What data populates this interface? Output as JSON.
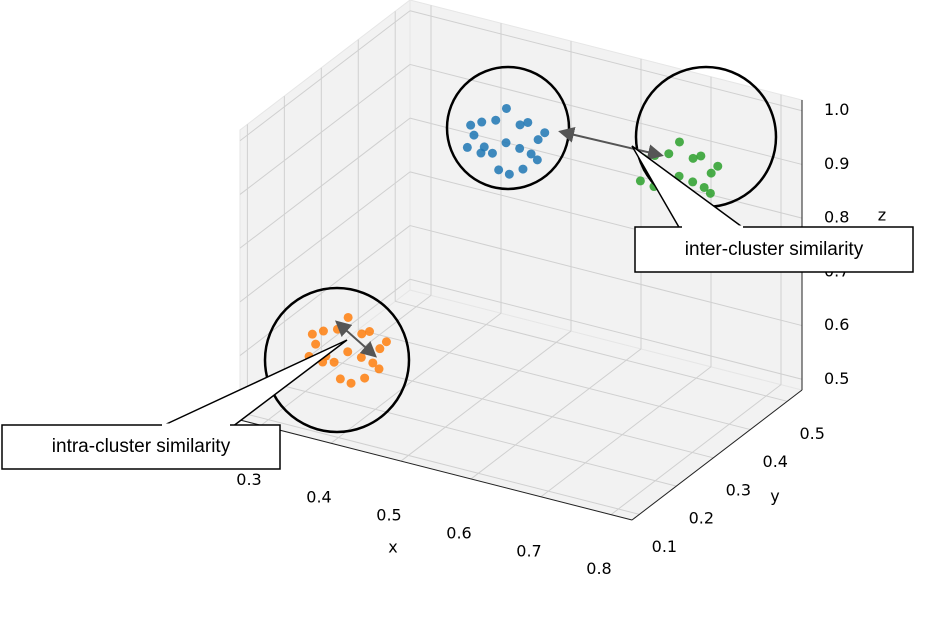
{
  "chart_data": {
    "type": "scatter3d",
    "xlabel": "x",
    "ylabel": "y",
    "zlabel": "z",
    "xlim": [
      0.27,
      0.83
    ],
    "ylim": [
      0.08,
      0.54
    ],
    "zlim": [
      0.48,
      1.02
    ],
    "xticks": [
      0.3,
      0.4,
      0.5,
      0.6,
      0.7,
      0.8
    ],
    "yticks": [
      0.1,
      0.2,
      0.3,
      0.4,
      0.5
    ],
    "zticks": [
      0.5,
      0.6,
      0.7,
      0.8,
      0.9,
      {
        "value": 1,
        "label": "1.0"
      }
    ],
    "grid": true,
    "annotations": [
      "inter-cluster similarity",
      "intra-cluster similarity"
    ],
    "series": [
      {
        "color": "#1f77b4",
        "x": [
          0.46,
          0.49,
          0.42,
          0.48,
          0.44,
          0.51,
          0.41,
          0.47,
          0.45,
          0.5,
          0.43,
          0.48,
          0.44,
          0.46,
          0.49,
          0.42,
          0.47,
          0.45,
          0.51,
          0.43
        ],
        "y": [
          0.44,
          0.42,
          0.45,
          0.47,
          0.41,
          0.45,
          0.43,
          0.48,
          0.4,
          0.41,
          0.46,
          0.44,
          0.45,
          0.42,
          0.47,
          0.42,
          0.43,
          0.46,
          0.43,
          0.41
        ],
        "z": [
          0.87,
          0.88,
          0.89,
          0.84,
          0.86,
          0.9,
          0.85,
          0.89,
          0.88,
          0.85,
          0.83,
          0.91,
          0.9,
          0.83,
          0.87,
          0.9,
          0.82,
          0.92,
          0.86,
          0.89
        ]
      },
      {
        "color": "#ff7f0e",
        "x": [
          0.35,
          0.38,
          0.31,
          0.37,
          0.33,
          0.4,
          0.3,
          0.36,
          0.34,
          0.39,
          0.32,
          0.37,
          0.33,
          0.35,
          0.38,
          0.31,
          0.36,
          0.34,
          0.4,
          0.32
        ],
        "y": [
          0.22,
          0.2,
          0.23,
          0.25,
          0.19,
          0.23,
          0.21,
          0.26,
          0.18,
          0.19,
          0.24,
          0.22,
          0.23,
          0.2,
          0.25,
          0.2,
          0.21,
          0.24,
          0.21,
          0.19
        ],
        "z": [
          0.56,
          0.57,
          0.58,
          0.53,
          0.55,
          0.59,
          0.54,
          0.58,
          0.57,
          0.54,
          0.52,
          0.6,
          0.59,
          0.52,
          0.56,
          0.59,
          0.51,
          0.61,
          0.55,
          0.58
        ]
      },
      {
        "color": "#2ca02c",
        "x": [
          0.76,
          0.79,
          0.72,
          0.78,
          0.74,
          0.81,
          0.71,
          0.77,
          0.75,
          0.8,
          0.73,
          0.78,
          0.74,
          0.76,
          0.79,
          0.72,
          0.77,
          0.75,
          0.81,
          0.73
        ],
        "y": [
          0.34,
          0.32,
          0.35,
          0.37,
          0.31,
          0.35,
          0.33,
          0.38,
          0.3,
          0.31,
          0.36,
          0.34,
          0.35,
          0.32,
          0.37,
          0.32,
          0.33,
          0.36,
          0.33,
          0.31
        ],
        "z": [
          0.96,
          0.97,
          0.98,
          0.93,
          0.95,
          0.99,
          0.94,
          0.98,
          0.97,
          0.94,
          0.92,
          1.0,
          0.99,
          0.92,
          0.96,
          0.99,
          0.91,
          1.01,
          0.95,
          0.98
        ]
      }
    ]
  }
}
